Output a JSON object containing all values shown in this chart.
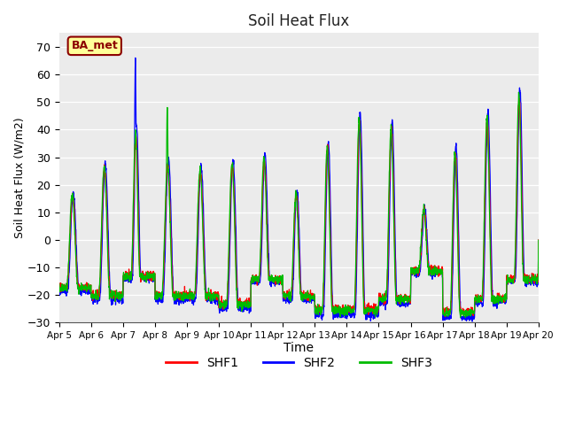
{
  "title": "Soil Heat Flux",
  "xlabel": "Time",
  "ylabel": "Soil Heat Flux (W/m2)",
  "ylim": [
    -30,
    75
  ],
  "yticks": [
    -30,
    -20,
    -10,
    0,
    10,
    20,
    30,
    40,
    50,
    60,
    70
  ],
  "x_labels": [
    "Apr 5",
    "Apr 6",
    "Apr 7",
    "Apr 8",
    "Apr 9",
    "Apr 10",
    "Apr 11",
    "Apr 12",
    "Apr 13",
    "Apr 14",
    "Apr 15",
    "Apr 16",
    "Apr 17",
    "Apr 18",
    "Apr 19",
    "Apr 20"
  ],
  "colors": {
    "SHF1": "#ff0000",
    "SHF2": "#0000ff",
    "SHF3": "#00bb00"
  },
  "annotation_text": "BA_met",
  "annotation_bg": "#ffff99",
  "annotation_border": "#8B0000",
  "plot_bg": "#ebebeb",
  "n_days": 15,
  "points_per_day": 144,
  "day_peaks": [
    16,
    26,
    38,
    27,
    25,
    27,
    29,
    17,
    33,
    43,
    40,
    11,
    31,
    43,
    51
  ],
  "day_troughs": [
    -17,
    -20,
    -13,
    -20,
    -20,
    -23,
    -14,
    -20,
    -25,
    -25,
    -21,
    -11,
    -26,
    -21,
    -14
  ],
  "peak_center": [
    0.42,
    0.42,
    0.4,
    0.4,
    0.42,
    0.42,
    0.42,
    0.42,
    0.4,
    0.4,
    0.4,
    0.42,
    0.4,
    0.4,
    0.4
  ],
  "peak_width": [
    0.18,
    0.18,
    0.14,
    0.18,
    0.18,
    0.18,
    0.16,
    0.16,
    0.16,
    0.16,
    0.16,
    0.16,
    0.16,
    0.16,
    0.15
  ]
}
